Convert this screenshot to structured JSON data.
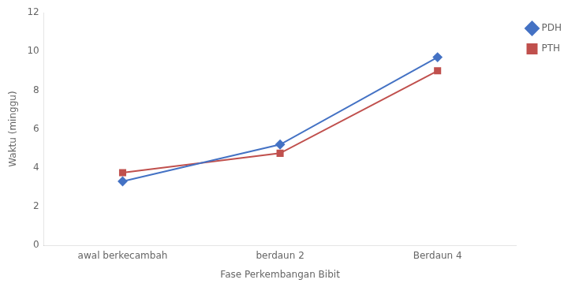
{
  "chart_data": {
    "type": "line",
    "categories": [
      "awal berkecambah",
      "berdaun 2",
      "Berdaun 4"
    ],
    "series": [
      {
        "name": "PDH",
        "color": "#4472C4",
        "marker": "diamond",
        "values": [
          3.3,
          5.2,
          9.7
        ]
      },
      {
        "name": "PTH",
        "color": "#C0504D",
        "marker": "square",
        "values": [
          3.75,
          4.75,
          9.0
        ]
      }
    ],
    "xlabel": "Fase Perkembangan Bibit",
    "ylabel": "Waktu (minggu)",
    "ylim": [
      0,
      12
    ],
    "yticks": [
      0,
      2,
      4,
      6,
      8,
      10,
      12
    ],
    "grid": false,
    "legend": "right"
  }
}
